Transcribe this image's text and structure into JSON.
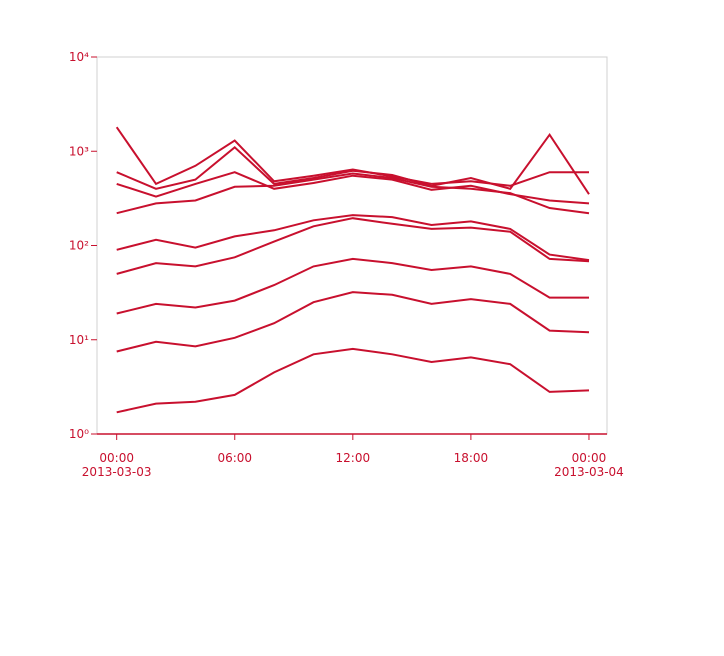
{
  "chart_data": {
    "type": "line",
    "log_y": true,
    "x": [
      "2013-03-03T00:00",
      "2013-03-03T02:00",
      "2013-03-03T04:00",
      "2013-03-03T06:00",
      "2013-03-03T08:00",
      "2013-03-03T10:00",
      "2013-03-03T12:00",
      "2013-03-03T14:00",
      "2013-03-03T16:00",
      "2013-03-03T18:00",
      "2013-03-03T20:00",
      "2013-03-03T22:00",
      "2013-03-04T00:00"
    ],
    "series": [
      {
        "color": "#c8102e",
        "values": [
          1.7,
          2.1,
          2.2,
          2.6,
          4.5,
          7.0,
          8.0,
          7.0,
          5.8,
          6.5,
          5.5,
          2.8,
          2.9
        ]
      },
      {
        "color": "#c8102e",
        "values": [
          7.5,
          9.5,
          8.5,
          10.5,
          15,
          25,
          32,
          30,
          24,
          27,
          24,
          12.5,
          12
        ]
      },
      {
        "color": "#c8102e",
        "values": [
          19,
          24,
          22,
          26,
          38,
          60,
          72,
          65,
          55,
          60,
          50,
          28,
          28
        ]
      },
      {
        "color": "#c8102e",
        "values": [
          50,
          65,
          60,
          75,
          110,
          160,
          195,
          170,
          150,
          155,
          140,
          72,
          68
        ]
      },
      {
        "color": "#c8102e",
        "values": [
          90,
          115,
          95,
          125,
          145,
          185,
          210,
          200,
          165,
          180,
          150,
          80,
          70
        ]
      },
      {
        "color": "#c8102e",
        "values": [
          220,
          280,
          300,
          420,
          430,
          500,
          580,
          520,
          420,
          400,
          360,
          250,
          220
        ]
      },
      {
        "color": "#c8102e",
        "values": [
          600,
          400,
          500,
          1100,
          450,
          520,
          620,
          560,
          430,
          520,
          400,
          1500,
          350
        ]
      },
      {
        "color": "#c8102e",
        "values": [
          1800,
          450,
          700,
          1300,
          480,
          550,
          640,
          540,
          450,
          480,
          430,
          600,
          600
        ]
      },
      {
        "color": "#c8102e",
        "values": [
          450,
          330,
          450,
          600,
          400,
          460,
          550,
          500,
          390,
          430,
          350,
          300,
          280
        ]
      }
    ],
    "xlim": [
      "2013-03-02T23:00",
      "2013-03-04T00:55"
    ],
    "xticks": [
      {
        "value": "2013-03-03T00:00",
        "label": "00:00\n2013-03-03"
      },
      {
        "value": "2013-03-03T06:00",
        "label": "06:00"
      },
      {
        "value": "2013-03-03T12:00",
        "label": "12:00"
      },
      {
        "value": "2013-03-03T18:00",
        "label": "18:00"
      },
      {
        "value": "2013-03-04T00:00",
        "label": "00:00\n2013-03-04"
      }
    ],
    "ylim": [
      1,
      10000
    ],
    "yticks": [
      {
        "value": 1,
        "label": "10⁰"
      },
      {
        "value": 10,
        "label": "10¹"
      },
      {
        "value": 100,
        "label": "10²"
      },
      {
        "value": 1000,
        "label": "10³"
      },
      {
        "value": 10000,
        "label": "10⁴"
      }
    ]
  }
}
